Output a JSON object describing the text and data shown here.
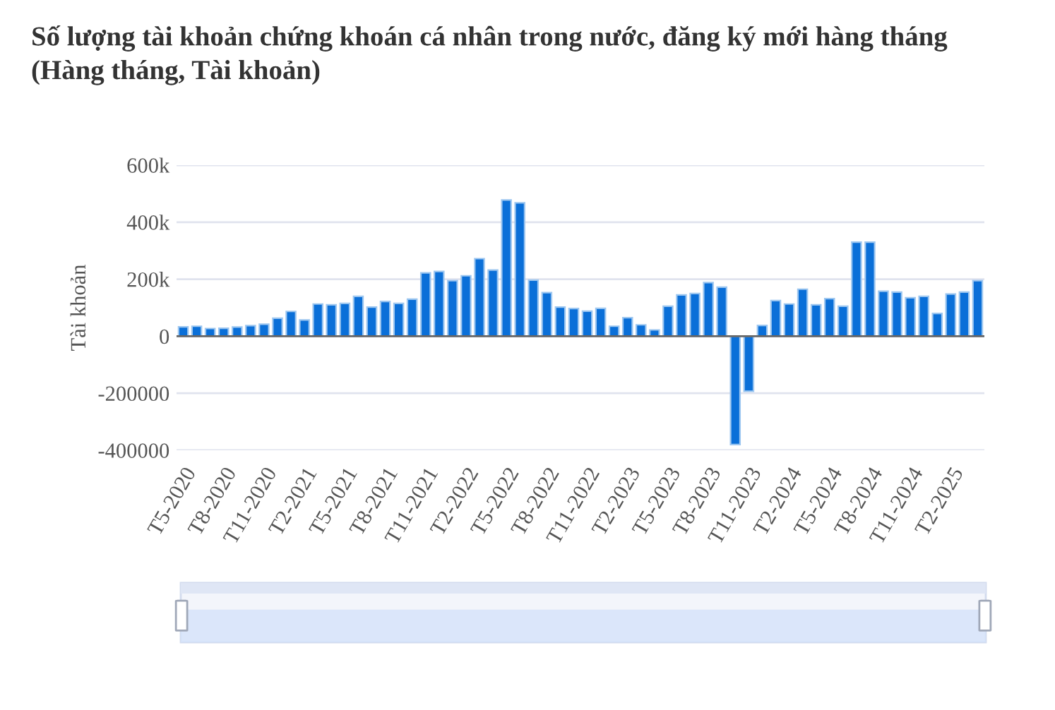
{
  "chart_data": {
    "type": "bar",
    "title": "Số lượng tài khoản chứng khoán cá nhân trong nước, đăng ký mới hàng tháng\n(Hàng tháng, Tài khoản)",
    "ylabel": "Tài khoản",
    "categories": [
      "T5-2020",
      null,
      null,
      "T8-2020",
      null,
      null,
      "T11-2020",
      null,
      null,
      "T2-2021",
      null,
      null,
      "T5-2021",
      null,
      null,
      "T8-2021",
      null,
      null,
      "T11-2021",
      null,
      null,
      "T2-2022",
      null,
      null,
      "T5-2022",
      null,
      null,
      "T8-2022",
      null,
      null,
      "T11-2022",
      null,
      null,
      "T2-2023",
      null,
      null,
      "T5-2023",
      null,
      null,
      "T8-2023",
      null,
      null,
      "T11-2023",
      null,
      null,
      "T2-2024",
      null,
      null,
      "T5-2024",
      null,
      null,
      "T8-2024",
      null,
      null,
      "T11-2024",
      null,
      null,
      "T2-2025",
      null,
      null
    ],
    "values": [
      33000,
      35000,
      27000,
      28000,
      32000,
      37000,
      42000,
      63000,
      87000,
      57000,
      113000,
      110000,
      115000,
      140000,
      102000,
      122000,
      115000,
      130000,
      222000,
      227000,
      195000,
      212000,
      272000,
      232000,
      478000,
      468000,
      197000,
      153000,
      102000,
      97000,
      88000,
      98000,
      35000,
      65000,
      40000,
      22000,
      105000,
      145000,
      150000,
      188000,
      172000,
      -380000,
      -193000,
      38000,
      125000,
      113000,
      165000,
      110000,
      132000,
      105000,
      330000,
      330000,
      158000,
      155000,
      135000,
      140000,
      80000,
      148000,
      155000,
      195000
    ],
    "color": "#0a6fd8",
    "ylim": [
      -400000,
      600000
    ],
    "yticks": [
      {
        "value": -400000,
        "label": "-400000"
      },
      {
        "value": -200000,
        "label": "-200000"
      },
      0,
      {
        "value": 200000,
        "label": "200k"
      },
      {
        "value": 400000,
        "label": "400k"
      },
      {
        "value": 600000,
        "label": "600k"
      }
    ],
    "grid": "y"
  }
}
